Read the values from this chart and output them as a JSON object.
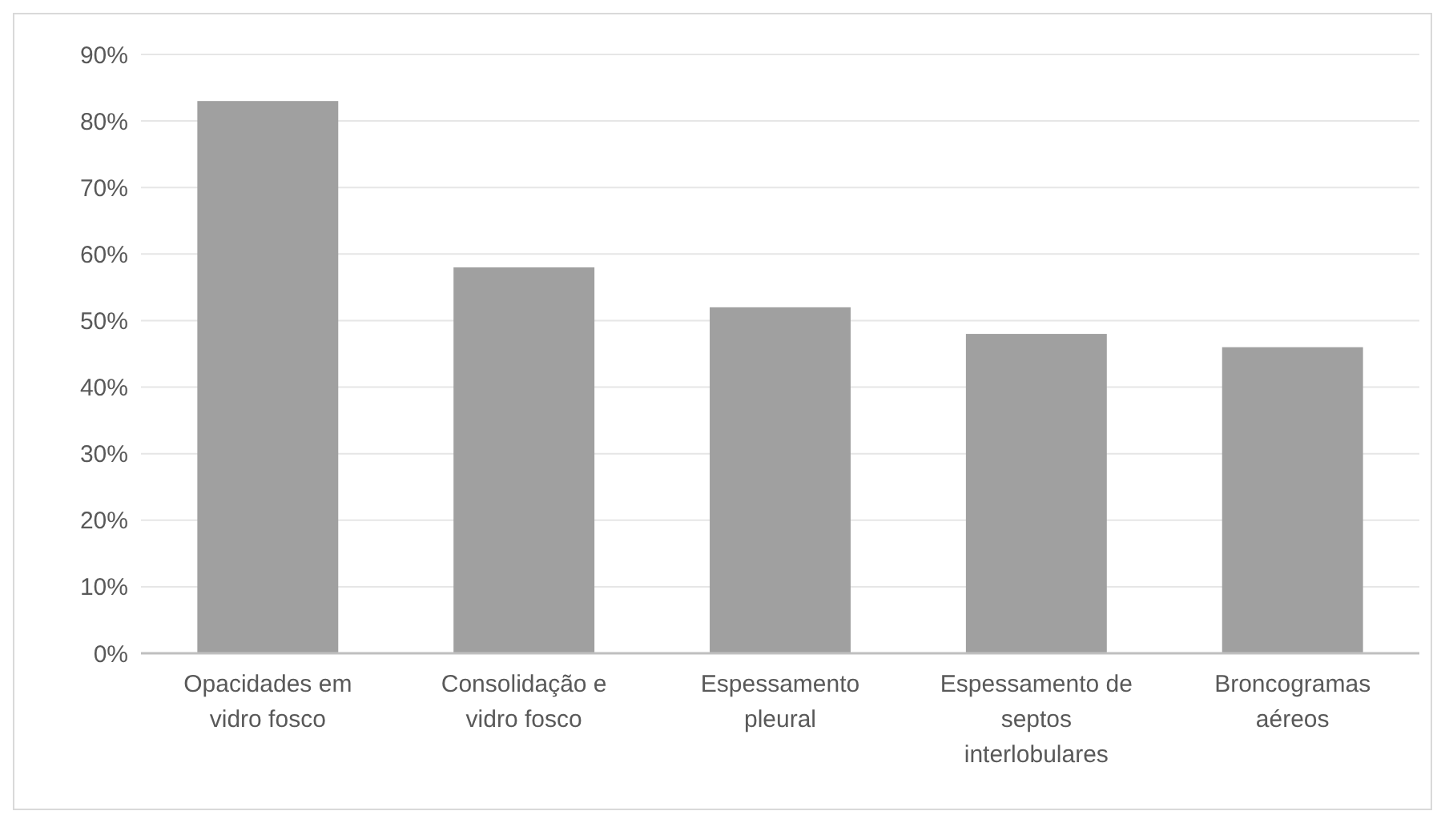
{
  "chart_data": {
    "type": "bar",
    "categories": [
      "Opacidades em vidro fosco",
      "Consolidação e vidro fosco",
      "Espessamento pleural",
      "Espessamento de septos interlobulares",
      "Broncogramas aéreos"
    ],
    "values": [
      83,
      58,
      52,
      48,
      46
    ],
    "color": "#a0a0a0",
    "ylim": [
      0,
      90
    ],
    "yticks": [
      {
        "value": 0,
        "label": "0%"
      },
      {
        "value": 10,
        "label": "10%"
      },
      {
        "value": 20,
        "label": "20%"
      },
      {
        "value": 30,
        "label": "30%"
      },
      {
        "value": 40,
        "label": "40%"
      },
      {
        "value": 50,
        "label": "50%"
      },
      {
        "value": 60,
        "label": "60%"
      },
      {
        "value": 70,
        "label": "70%"
      },
      {
        "value": 80,
        "label": "80%"
      },
      {
        "value": 90,
        "label": "90%"
      }
    ],
    "grid": "y"
  }
}
